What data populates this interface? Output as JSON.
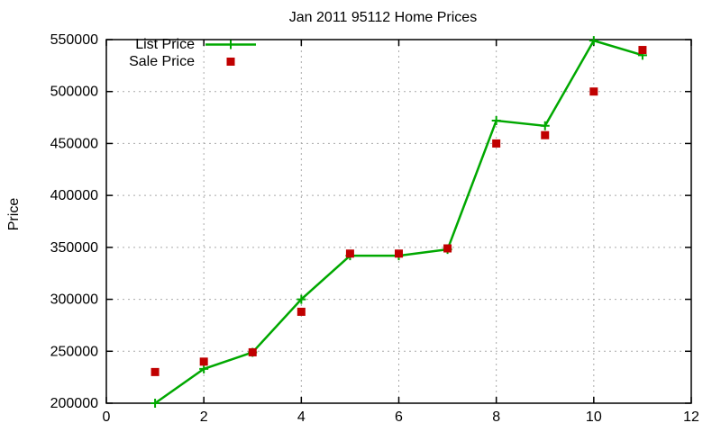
{
  "title": "Jan 2011 95112 Home Prices",
  "ylabel": "Price",
  "legend": {
    "items": [
      {
        "label": "List Price"
      },
      {
        "label": "Sale Price"
      }
    ]
  },
  "chart_data": {
    "type": "line",
    "title": "Jan 2011 95112 Home Prices",
    "xlabel": "",
    "ylabel": "Price",
    "x": [
      1,
      2,
      3,
      4,
      5,
      6,
      7,
      8,
      9,
      10,
      11
    ],
    "series": [
      {
        "name": "List Price",
        "style": "line+plus",
        "color": "#00a800",
        "values": [
          200000,
          233000,
          249000,
          300000,
          342000,
          342000,
          348000,
          472000,
          467000,
          549000,
          535000
        ]
      },
      {
        "name": "Sale Price",
        "style": "squares",
        "color": "#c00000",
        "values": [
          230000,
          240000,
          249000,
          288000,
          344000,
          344000,
          349000,
          450000,
          458000,
          500000,
          540000
        ]
      }
    ],
    "xlim": [
      0,
      12
    ],
    "ylim": [
      200000,
      550000
    ],
    "xticks": [
      0,
      2,
      4,
      6,
      8,
      10,
      12
    ],
    "yticks": [
      200000,
      250000,
      300000,
      350000,
      400000,
      450000,
      500000,
      550000
    ],
    "grid": true,
    "grid_color": "#a9a9a9",
    "legend_position": "top-left",
    "background": "#ffffff"
  }
}
